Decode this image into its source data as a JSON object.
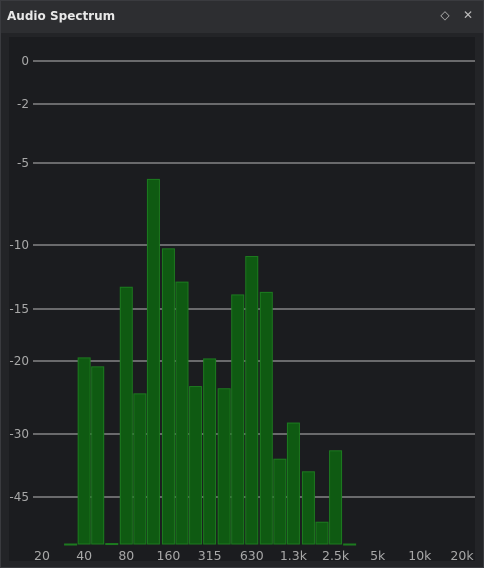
{
  "window": {
    "title": "Audio Spectrum",
    "pin_icon": "diamond-pin-icon",
    "close_icon": "close-icon"
  },
  "chart_data": {
    "type": "bar",
    "title": "",
    "xlabel": "",
    "ylabel": "",
    "y_ticks": [
      0,
      -2,
      -5,
      -10,
      -15,
      -20,
      -30,
      -45
    ],
    "y_tick_labels": [
      "0",
      "-2",
      "-5",
      "-10",
      "-15",
      "-20",
      "-30",
      "-45"
    ],
    "x_ticks": [
      "20",
      "40",
      "80",
      "160",
      "315",
      "630",
      "1.3k",
      "2.5k",
      "5k",
      "10k",
      "20k"
    ],
    "bands": [
      {
        "f": 32,
        "db": -65.5
      },
      {
        "f": 40,
        "db": -19.7
      },
      {
        "f": 50,
        "db": -20.8
      },
      {
        "f": 63,
        "db": -65.3
      },
      {
        "f": 80,
        "db": -13.3
      },
      {
        "f": 100,
        "db": -24.5
      },
      {
        "f": 125,
        "db": -6.0
      },
      {
        "f": 160,
        "db": -10.3
      },
      {
        "f": 200,
        "db": -12.9
      },
      {
        "f": 250,
        "db": -23.5
      },
      {
        "f": 315,
        "db": -19.8
      },
      {
        "f": 400,
        "db": -23.8
      },
      {
        "f": 500,
        "db": -13.9
      },
      {
        "f": 630,
        "db": -10.9
      },
      {
        "f": 800,
        "db": -13.7
      },
      {
        "f": 1000,
        "db": -36.0
      },
      {
        "f": 1250,
        "db": -28.5
      },
      {
        "f": 1600,
        "db": -39.0
      },
      {
        "f": 2000,
        "db": -56.0
      },
      {
        "f": 2500,
        "db": -34.0
      },
      {
        "f": 3150,
        "db": -65.5
      }
    ],
    "grid": true,
    "colors": {
      "bar_fill": "#0f5a12",
      "bar_edge": "#1c7a1f",
      "grid": "#b8b8b8",
      "label": "#a8a8a8",
      "background": "#1b1c1f"
    }
  }
}
